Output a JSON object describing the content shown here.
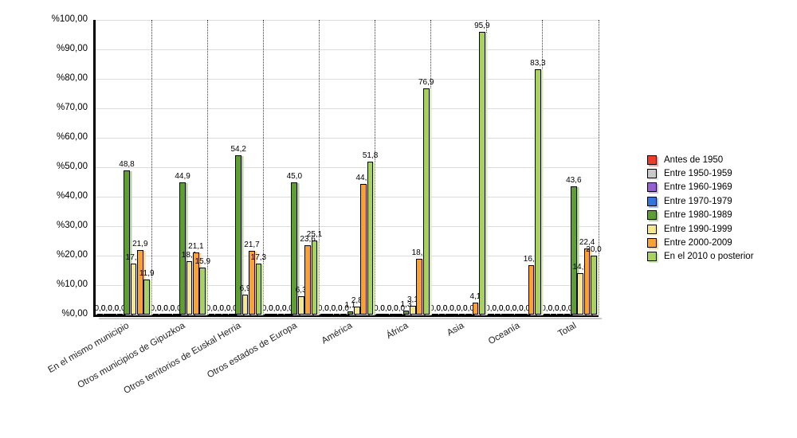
{
  "chart_data": {
    "type": "bar",
    "title": "",
    "xlabel": "",
    "ylabel": "",
    "ylim": [
      0,
      100
    ],
    "ytick_labels": [
      "%0,00",
      "%10,00",
      "%20,00",
      "%30,00",
      "%40,00",
      "%50,00",
      "%60,00",
      "%70,00",
      "%80,00",
      "%90,00",
      "%100,00"
    ],
    "grid": {
      "horizontal": "solid-light-gray",
      "vertical": "dotted-category-separators"
    },
    "legend_position": "right",
    "decimal_separator": ",",
    "categories": [
      "En el mismo municipio",
      "Otros municipios de Gipuzkoa",
      "Otros territorios de Euskal Herria",
      "Otros estados de Europa",
      "América",
      "África",
      "Asia",
      "Oceanía",
      "Total"
    ],
    "series": [
      {
        "name": "Antes de 1950",
        "color": "#ee3c2b",
        "values": [
          0,
          0,
          0,
          0,
          0,
          0,
          0,
          0,
          0
        ]
      },
      {
        "name": "Entre 1950-1959",
        "color": "#c9c9c9",
        "values": [
          0,
          0,
          0,
          0,
          0,
          0,
          0,
          0,
          0
        ]
      },
      {
        "name": "Entre 1960-1969",
        "color": "#9760d2",
        "values": [
          0,
          0,
          0,
          0,
          0,
          0,
          0,
          0,
          0
        ]
      },
      {
        "name": "Entre 1970-1979",
        "color": "#3474e0",
        "values": [
          0,
          0,
          0,
          0,
          0,
          0,
          0,
          0,
          0
        ]
      },
      {
        "name": "Entre 1980-1989",
        "color": "#5f9e33",
        "values": [
          48.8,
          44.9,
          54.2,
          45.0,
          1.1,
          1.3,
          0,
          0,
          43.6
        ]
      },
      {
        "name": "Entre 1990-1999",
        "color": "#f5e78e",
        "values": [
          17.3,
          18.1,
          6.9,
          6.3,
          2.8,
          3.1,
          0,
          0,
          14.0
        ]
      },
      {
        "name": "Entre 2000-2009",
        "color": "#f7a233",
        "values": [
          21.9,
          21.1,
          21.7,
          23.6,
          44.3,
          18.8,
          4.1,
          16.7,
          22.4
        ]
      },
      {
        "name": "En el 2010 o posterior",
        "color": "#a9d161",
        "values": [
          11.9,
          15.9,
          17.3,
          25.1,
          51.8,
          76.9,
          95.9,
          83.3,
          20.0
        ]
      }
    ]
  }
}
